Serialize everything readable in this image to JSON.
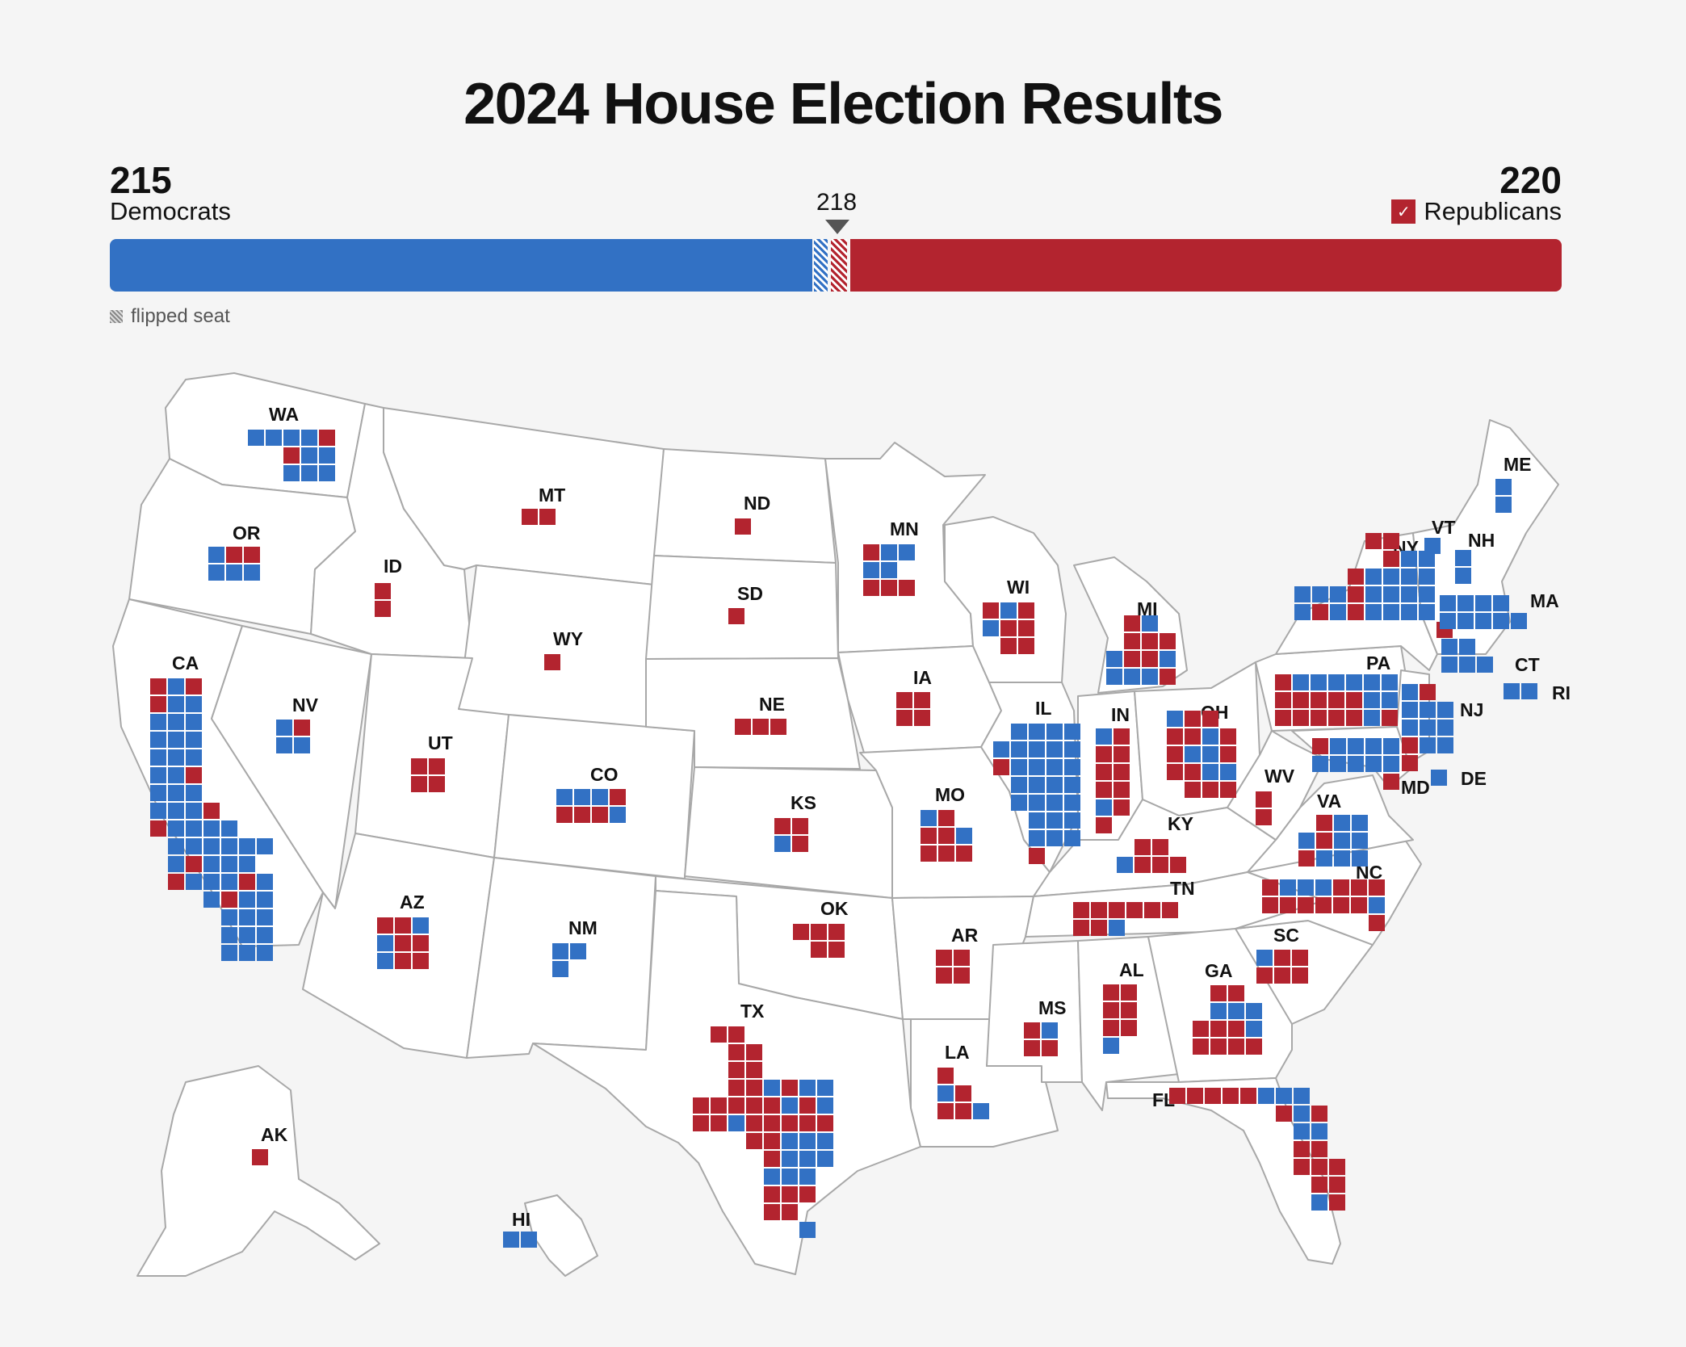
{
  "title": "2024 House Election Results",
  "summary": {
    "democrats": {
      "seats": "215",
      "label": "Democrats"
    },
    "republicans": {
      "seats": "220",
      "label": "Republicans",
      "winner_mark": "✓"
    },
    "majority": "218",
    "flipped_label": "flipped seat",
    "flipped_seats": {
      "democrats": 4,
      "republicans": 5
    }
  },
  "colors": {
    "democrat": "#3271c4",
    "republican": "#b3242f",
    "empty": "rgba(0,0,0,0)"
  },
  "states": [
    {
      "abbr": "WA",
      "rows": [
        "DDDDR",
        "..RDD",
        "..DDD"
      ]
    },
    {
      "abbr": "OR",
      "rows": [
        "DRR",
        "DDD"
      ]
    },
    {
      "abbr": "CA",
      "rows": [
        "RDR",
        "RDD",
        "DDD",
        "DDD",
        "DDD",
        "DDR",
        "DDD",
        "DDDR..",
        "RDDDD.",
        ".DDDDDD",
        ".DRDDD",
        ".RDDDRD",
        "...DRDD",
        "....DDD",
        "....DDD",
        "....DDD"
      ]
    },
    {
      "abbr": "ID",
      "rows": [
        "R",
        "R"
      ]
    },
    {
      "abbr": "NV",
      "rows": [
        "DR",
        "DD"
      ]
    },
    {
      "abbr": "MT",
      "rows": [
        "RR"
      ]
    },
    {
      "abbr": "WY",
      "rows": [
        "R"
      ]
    },
    {
      "abbr": "UT",
      "rows": [
        "RR",
        "RR"
      ]
    },
    {
      "abbr": "AZ",
      "rows": [
        "RRD",
        "DRR",
        "DRR"
      ]
    },
    {
      "abbr": "CO",
      "rows": [
        "DDDR",
        "RRRD"
      ]
    },
    {
      "abbr": "NM",
      "rows": [
        "DD",
        "D."
      ]
    },
    {
      "abbr": "ND",
      "rows": [
        "R"
      ]
    },
    {
      "abbr": "SD",
      "rows": [
        "R"
      ]
    },
    {
      "abbr": "NE",
      "rows": [
        "RRR"
      ]
    },
    {
      "abbr": "KS",
      "rows": [
        "RR",
        "DR"
      ]
    },
    {
      "abbr": "OK",
      "rows": [
        "RRR",
        ".RR"
      ]
    },
    {
      "abbr": "TX",
      "rows": [
        ".RR..",
        "..RR..",
        "..RR..",
        "..RRDRDD",
        "RRRRRDRD",
        "RRDRRRRR",
        "...RRDDD",
        "....RDDD",
        "....DDD",
        "....RRR",
        "....RR",
        "......D"
      ]
    },
    {
      "abbr": "MN",
      "rows": [
        "RDD",
        "DD.",
        "RRR"
      ]
    },
    {
      "abbr": "IA",
      "rows": [
        "RR",
        "RR"
      ]
    },
    {
      "abbr": "MO",
      "rows": [
        "DR.",
        "RRD",
        "RRR"
      ]
    },
    {
      "abbr": "AR",
      "rows": [
        "RR",
        "RR"
      ]
    },
    {
      "abbr": "LA",
      "rows": [
        "R..",
        "DR.",
        "RRD"
      ]
    },
    {
      "abbr": "WI",
      "rows": [
        "RDR",
        "DRR",
        ".RR"
      ]
    },
    {
      "abbr": "IL",
      "rows": [
        ".DDDD",
        "DDDDD",
        "RDDDD",
        ".DDDD",
        ".DDDD",
        "..DDD",
        "..DDD",
        "..R"
      ]
    },
    {
      "abbr": "MI",
      "rows": [
        ".RD",
        ".RRR",
        "DRRD",
        "DDDR"
      ]
    },
    {
      "abbr": "IN",
      "rows": [
        "DR",
        "RR",
        "RR",
        "RR",
        "DR",
        "R"
      ]
    },
    {
      "abbr": "OH",
      "rows": [
        "DRR.",
        "RRDR",
        "RDDR",
        "RRDD",
        ".RRR"
      ]
    },
    {
      "abbr": "KY",
      "rows": [
        ".RR",
        "DRRR"
      ]
    },
    {
      "abbr": "TN",
      "rows": [
        "RRRRRR",
        "RRD..."
      ]
    },
    {
      "abbr": "MS",
      "rows": [
        "RD",
        "RR"
      ]
    },
    {
      "abbr": "AL",
      "rows": [
        "RR",
        "RR",
        "RR",
        "D."
      ]
    },
    {
      "abbr": "GA",
      "rows": [
        ".RR",
        ".DDD",
        "RRRD",
        "RRRR"
      ]
    },
    {
      "abbr": "FL",
      "rows": [
        "RRRRRDDD..",
        "......RDR.",
        ".......DD.",
        ".......RR.",
        ".......RRR",
        "........RR.",
        "........DR"
      ]
    },
    {
      "abbr": "SC",
      "rows": [
        "DRR",
        "RRR"
      ]
    },
    {
      "abbr": "NC",
      "rows": [
        "RDDDRRR",
        "RRRRRRD",
        "......R"
      ]
    },
    {
      "abbr": "VA",
      "rows": [
        ".RDD",
        "DRDD",
        "RDDD"
      ]
    },
    {
      "abbr": "WV",
      "rows": [
        "R",
        "R"
      ]
    },
    {
      "abbr": "PA",
      "rows": [
        "RDDDDDD",
        "RRRRRDD",
        "RRRRRDR"
      ]
    },
    {
      "abbr": "MD",
      "rows": [
        "RDDDD",
        "DDDDD",
        "....R"
      ]
    },
    {
      "abbr": "NY",
      "rows": [
        "....RR.",
        ".....RDD",
        "...RDDDD",
        "DDDRDDDD",
        "DRDRDDDD",
        "........R"
      ]
    },
    {
      "abbr": "NJ",
      "rows": [
        "DR",
        "DDD",
        "DDD",
        "RDD",
        "R."
      ]
    },
    {
      "abbr": "DE",
      "rows": [
        "D"
      ]
    },
    {
      "abbr": "CT",
      "rows": [
        "DD",
        "DDD"
      ]
    },
    {
      "abbr": "RI",
      "rows": [
        "DD"
      ]
    },
    {
      "abbr": "MA",
      "rows": [
        "DDDD",
        "DDDDD"
      ]
    },
    {
      "abbr": "VT",
      "rows": [
        "D"
      ]
    },
    {
      "abbr": "NH",
      "rows": [
        "D",
        "D"
      ]
    },
    {
      "abbr": "ME",
      "rows": [
        "D",
        "D"
      ]
    },
    {
      "abbr": "AK",
      "rows": [
        "R"
      ]
    },
    {
      "abbr": "HI",
      "rows": [
        "DD"
      ]
    }
  ]
}
